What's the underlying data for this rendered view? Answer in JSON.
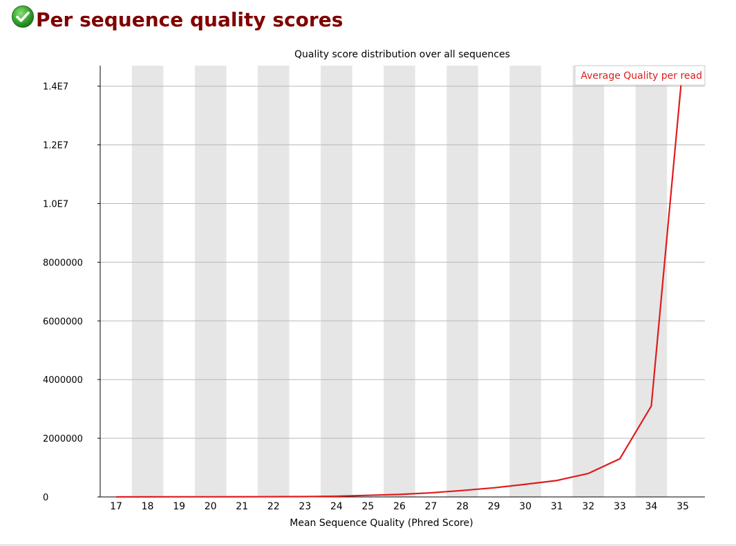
{
  "header": {
    "title": "Per sequence quality scores",
    "status_icon": "check-circle-icon",
    "status_color": "#3aa832"
  },
  "colors": {
    "title": "#800000",
    "series": "#e01b1b",
    "band": "#e6e6e6",
    "grid": "#b8b8b8",
    "axis": "#000000"
  },
  "chart_data": {
    "type": "line",
    "title": "Quality score distribution over all sequences",
    "xlabel": "Mean Sequence Quality (Phred Score)",
    "ylabel": "",
    "x": [
      17,
      18,
      19,
      20,
      21,
      22,
      23,
      24,
      25,
      26,
      27,
      28,
      29,
      30,
      31,
      32,
      33,
      34,
      35
    ],
    "series": [
      {
        "name": "Average Quality per read",
        "values": [
          2000,
          3000,
          4000,
          5000,
          6000,
          8000,
          12000,
          25000,
          55000,
          85000,
          140000,
          220000,
          310000,
          430000,
          560000,
          800000,
          1300000,
          3100000,
          14700000
        ]
      }
    ],
    "ylim": [
      0,
      14700000
    ],
    "yticks": [
      0,
      2000000,
      4000000,
      6000000,
      8000000,
      10000000,
      12000000,
      14000000
    ],
    "ytick_labels": [
      "0",
      "2000000",
      "4000000",
      "6000000",
      "8000000",
      "1.0E7",
      "1.2E7",
      "1.4E7"
    ],
    "grid": true,
    "alternating_bands": true,
    "legend_position": "top-right"
  }
}
